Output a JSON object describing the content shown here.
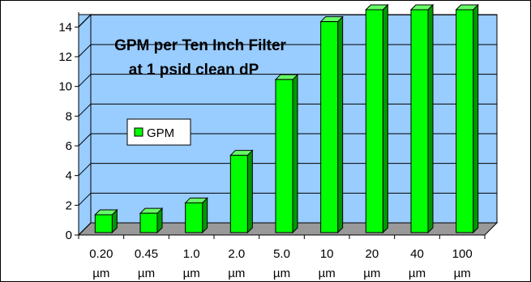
{
  "chart_data": {
    "type": "bar",
    "title_line1": "GPM per Ten Inch Filter",
    "title_line2": "at 1 psid clean dP",
    "categories": [
      {
        "value": "0.20",
        "unit": "µm"
      },
      {
        "value": "0.45",
        "unit": "µm"
      },
      {
        "value": "1.0",
        "unit": "µm"
      },
      {
        "value": "2.0",
        "unit": "µm"
      },
      {
        "value": "5.0",
        "unit": "µm"
      },
      {
        "value": "10",
        "unit": "µm"
      },
      {
        "value": "20",
        "unit": "µm"
      },
      {
        "value": "40",
        "unit": "µm"
      },
      {
        "value": "100",
        "unit": "µm"
      }
    ],
    "series": [
      {
        "name": "GPM",
        "values": [
          1.2,
          1.3,
          2.0,
          5.2,
          10.3,
          14.2,
          15.0,
          15.0,
          15.0
        ]
      }
    ],
    "ylim": [
      0,
      15
    ],
    "yticks": [
      0,
      2,
      4,
      6,
      8,
      10,
      12,
      14
    ],
    "grid": true,
    "legend_position": "middle-left",
    "colors": {
      "bar_front": "#00ff00",
      "bar_side": "#009900",
      "bar_top": "#66ff66",
      "wall": "#99ccff",
      "floor": "#999999",
      "frame": "#000000"
    }
  }
}
